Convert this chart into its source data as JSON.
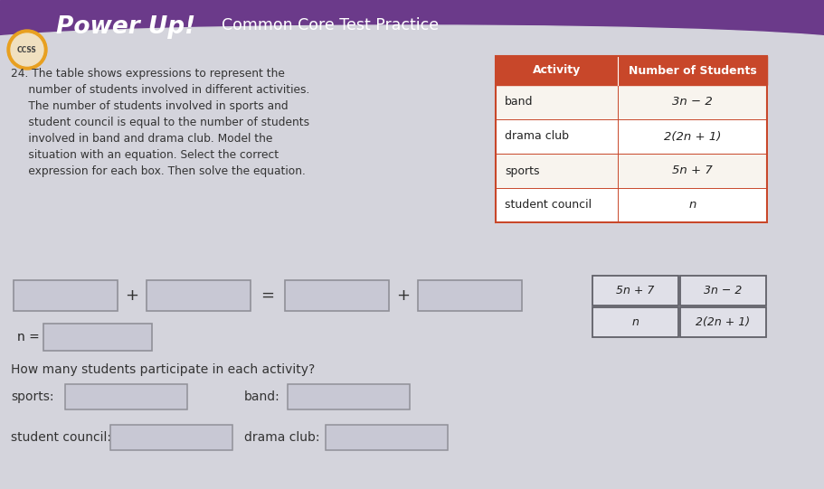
{
  "bg_color": "#d4d4dc",
  "header_bg": "#6b3a8a",
  "ccss_circle_outer": "#e8a020",
  "ccss_circle_inner": "#f0e0c0",
  "table_header_color": "#c8472a",
  "table_header_text_color": "#ffffff",
  "table_row_colors": [
    "#f8f4ee",
    "#ffffff",
    "#f8f4ee",
    "#ffffff"
  ],
  "table_border_color": "#c8472a",
  "equation_box_color": "#c8c8d4",
  "equation_box_border": "#909098",
  "answer_tile_bg": "#e0e0e8",
  "answer_tile_border": "#606068",
  "answer_tiles": [
    [
      "5n + 7",
      "3n − 2"
    ],
    [
      "n",
      "2(2n + 1)"
    ]
  ],
  "table_rows": [
    [
      "band",
      "3n − 2"
    ],
    [
      "drama club",
      "2(2n + 1)"
    ],
    [
      "sports",
      "5n + 7"
    ],
    [
      "student council",
      "n"
    ]
  ],
  "body_text_color": "#333333"
}
